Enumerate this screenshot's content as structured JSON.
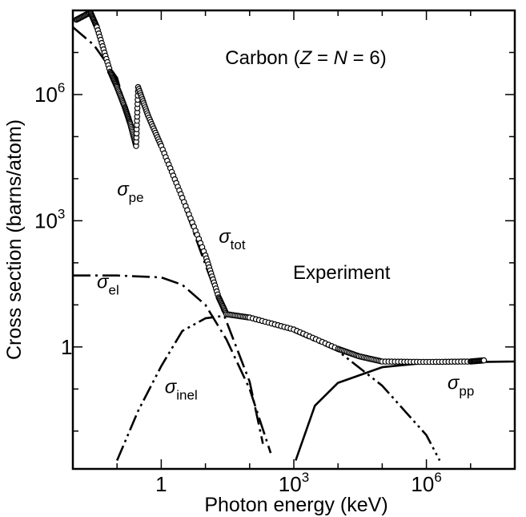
{
  "chart_data": {
    "type": "line",
    "title_parts": [
      "Carbon (",
      "Z",
      " = ",
      "N",
      " = 6)"
    ],
    "annotation": "Experiment",
    "xlabel": "Photon energy (keV)",
    "ylabel": "Cross section (barns/atom)",
    "x_scale": "log",
    "y_scale": "log",
    "xlim": [
      0.01,
      100000000
    ],
    "ylim": [
      0.00126,
      100000000
    ],
    "x_ticks": [
      {
        "value": 1,
        "base": "1",
        "exp": ""
      },
      {
        "value": 1000,
        "base": "10",
        "exp": "3"
      },
      {
        "value": 1000000,
        "base": "10",
        "exp": "6"
      }
    ],
    "y_ticks": [
      {
        "value": 1,
        "base": "1",
        "exp": ""
      },
      {
        "value": 1000,
        "base": "10",
        "exp": "3"
      },
      {
        "value": 1000000,
        "base": "10",
        "exp": "6"
      }
    ],
    "series": [
      {
        "label": "σ",
        "sub": "pe",
        "style": "dash-dot",
        "points": [
          [
            0.01,
            40000000.0
          ],
          [
            0.03,
            15000000.0
          ],
          [
            0.1,
            2500000.0
          ],
          [
            0.2,
            200000.0
          ],
          [
            0.28,
            70000.0
          ],
          [
            0.28,
            1500000.0
          ],
          [
            0.5,
            300000.0
          ],
          [
            1,
            60000.0
          ],
          [
            3,
            3000.0
          ],
          [
            10,
            90
          ],
          [
            30,
            4
          ],
          [
            100,
            0.15
          ],
          [
            200,
            0.005
          ]
        ]
      },
      {
        "label": "σ",
        "sub": "el",
        "style": "dash-dot",
        "points": [
          [
            0.01,
            50
          ],
          [
            0.1,
            50
          ],
          [
            1,
            45
          ],
          [
            3,
            30
          ],
          [
            10,
            10
          ],
          [
            30,
            1.5
          ],
          [
            100,
            0.1
          ],
          [
            300,
            0.003
          ]
        ]
      },
      {
        "label": "σ",
        "sub": "inel",
        "style": "dash-dot-dot",
        "points": [
          [
            0.1,
            0.002
          ],
          [
            0.3,
            0.03
          ],
          [
            1,
            0.35
          ],
          [
            3,
            2.4
          ],
          [
            10,
            4.8
          ],
          [
            30,
            5.6
          ],
          [
            100,
            5
          ],
          [
            1000,
            2.3
          ],
          [
            10000,
            0.8
          ],
          [
            100000,
            0.12
          ],
          [
            1000000,
            0.008
          ],
          [
            2000000,
            0.002
          ]
        ]
      },
      {
        "label": "σ",
        "sub": "pp",
        "style": "solid",
        "points": [
          [
            1100,
            0.002
          ],
          [
            3000,
            0.04
          ],
          [
            10000,
            0.14
          ],
          [
            100000,
            0.33
          ],
          [
            1000000,
            0.42
          ],
          [
            100000000,
            0.45
          ]
        ]
      },
      {
        "label": "σ",
        "sub": "tot",
        "style": "markers",
        "points": [
          [
            0.012,
            60000000.0
          ],
          [
            0.025,
            90000000.0
          ],
          [
            0.035,
            40000000.0
          ],
          [
            0.07,
            3500000.0
          ],
          [
            0.1,
            1500000.0
          ],
          [
            0.15,
            500000.0
          ],
          [
            0.2,
            200000.0
          ],
          [
            0.27,
            60000.0
          ],
          [
            0.3,
            1500000.0
          ],
          [
            0.5,
            320000.0
          ],
          [
            1,
            60000.0
          ],
          [
            3,
            3500.0
          ],
          [
            10,
            150
          ],
          [
            20,
            15
          ],
          [
            30,
            6
          ],
          [
            100,
            5
          ],
          [
            1000,
            2.6
          ],
          [
            10000,
            0.9
          ],
          [
            30000,
            0.6
          ],
          [
            100000,
            0.45
          ],
          [
            1000000,
            0.44
          ],
          [
            10000000,
            0.45
          ],
          [
            20000000,
            0.48
          ]
        ]
      }
    ]
  }
}
